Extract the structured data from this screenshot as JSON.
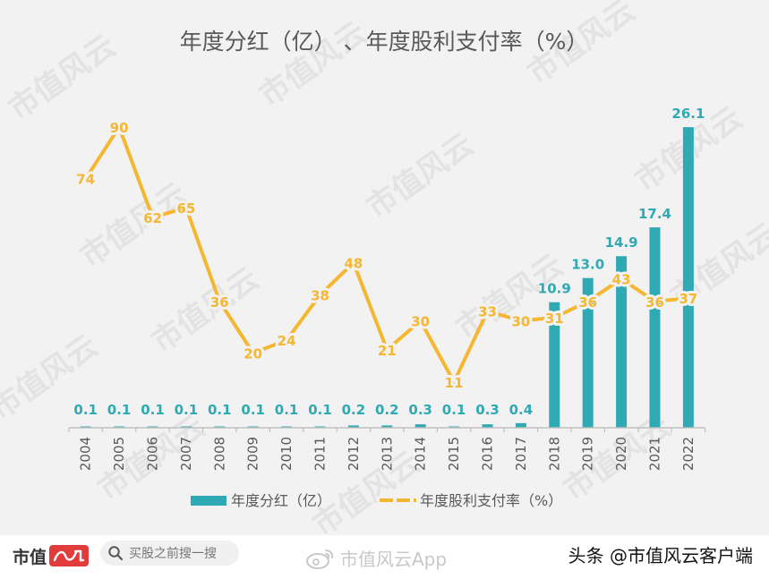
{
  "chart_data": {
    "type": "bar+line",
    "title": "年度分红（亿）  、年度股利支付率（%）",
    "categories": [
      "2004",
      "2005",
      "2006",
      "2007",
      "2008",
      "2009",
      "2010",
      "2011",
      "2012",
      "2013",
      "2014",
      "2015",
      "2016",
      "2017",
      "2018",
      "2019",
      "2020",
      "2021",
      "2022"
    ],
    "series": [
      {
        "name": "年度分红（亿）",
        "type": "bar",
        "color": "#2fa9b4",
        "values": [
          0.1,
          0.1,
          0.1,
          0.1,
          0.1,
          0.1,
          0.1,
          0.1,
          0.2,
          0.2,
          0.3,
          0.1,
          0.3,
          0.4,
          10.9,
          13.0,
          14.9,
          17.4,
          26.1
        ],
        "labels": [
          "0.1",
          "0.1",
          "0.1",
          "0.1",
          "0.1",
          "0.1",
          "0.1",
          "0.1",
          "0.2",
          "0.2",
          "0.3",
          "0.1",
          "0.3",
          "0.4",
          "10.9",
          "13.0",
          "14.9",
          "17.4",
          "26.1"
        ]
      },
      {
        "name": "年度股利支付率（%）",
        "type": "line",
        "color": "#f5b731",
        "values": [
          74,
          90,
          62,
          65,
          36,
          20,
          24,
          38,
          48,
          21,
          30,
          11,
          33,
          30,
          31,
          36,
          43,
          36,
          37
        ],
        "labels": [
          "74",
          "90",
          "62",
          "65",
          "36",
          "20",
          "24",
          "38",
          "48",
          "21",
          "30",
          "11",
          "33",
          "30",
          "31",
          "36",
          "43",
          "36",
          "37"
        ]
      }
    ],
    "legend": [
      "年度分红（亿）",
      "年度股利支付率（%）"
    ],
    "legend_position": "bottom",
    "xlabel": "",
    "ylabel": "",
    "grid": false
  },
  "watermark": "市值风云",
  "footer": {
    "logo_text": "市值",
    "logo_mark": "风云",
    "search_placeholder": "买股之前搜一搜",
    "app_text": "市值风云App",
    "credit": "头条 @市值风云客户端"
  },
  "colors": {
    "bar": "#2fa9b4",
    "line": "#f5b731",
    "background": "#f2f2f2",
    "logo_red": "#e23b3b"
  }
}
